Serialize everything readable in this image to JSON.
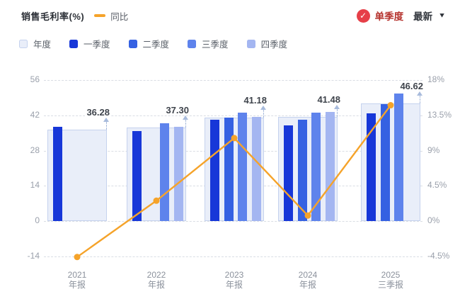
{
  "header": {
    "title": "销售毛利率(%)",
    "line_legend": "同比",
    "toggle_label": "单季度",
    "latest_label": "最新"
  },
  "legend": {
    "items": [
      {
        "key": "annual",
        "label": "年度"
      },
      {
        "key": "q1",
        "label": "一季度"
      },
      {
        "key": "q2",
        "label": "二季度"
      },
      {
        "key": "q3",
        "label": "三季度"
      },
      {
        "key": "q4",
        "label": "四季度"
      }
    ]
  },
  "colors": {
    "q1": "#1737d8",
    "q2": "#3561e2",
    "q3": "#5e83ec",
    "q4": "#a4b6f1",
    "annual_fill": "#e9eef9",
    "annual_border": "#c5d2ee",
    "line": "#f5a32a",
    "badge_red": "#e63f48",
    "toggle_text": "#b5322d",
    "pointer": "#a8bbdc"
  },
  "chart_data": {
    "type": "bar",
    "subtype": "grouped bars with annual background bar + YoY line on secondary axis",
    "title": "销售毛利率(%)",
    "categories": [
      "2021 年报",
      "2022 年报",
      "2023 年报",
      "2024 年报",
      "2025 三季报"
    ],
    "category_lines": [
      [
        "2021",
        "年报"
      ],
      [
        "2022",
        "年报"
      ],
      [
        "2023",
        "年报"
      ],
      [
        "2024",
        "年报"
      ],
      [
        "2025",
        "三季报"
      ]
    ],
    "annual_series": {
      "name": "年度",
      "values": [
        36.28,
        37.3,
        41.18,
        41.48,
        46.62
      ]
    },
    "annual_labels": [
      "36.28",
      "37.30",
      "41.18",
      "41.48",
      "46.62"
    ],
    "series": [
      {
        "name": "一季度",
        "values": [
          37.4,
          35.7,
          40.2,
          38.0,
          42.7
        ]
      },
      {
        "name": "二季度",
        "values": [
          null,
          null,
          41.1,
          40.4,
          46.5
        ]
      },
      {
        "name": "三季度",
        "values": [
          null,
          38.9,
          43.0,
          43.0,
          50.8
        ]
      },
      {
        "name": "四季度",
        "values": [
          null,
          37.5,
          41.4,
          43.4,
          null
        ]
      }
    ],
    "line_series": {
      "name": "同比",
      "axis": "right",
      "unit": "%",
      "values": [
        -4.6,
        2.6,
        10.6,
        0.7,
        14.8
      ]
    },
    "left_axis": {
      "label": "",
      "min": -14,
      "max": 56,
      "step": 14,
      "ticks": [
        56,
        42,
        28,
        14,
        0,
        -14
      ]
    },
    "right_axis": {
      "label": "",
      "min": -4.5,
      "max": 18,
      "step": 4.5,
      "ticks": [
        "18%",
        "13.5%",
        "9%",
        "4.5%",
        "0%",
        "-4.5%"
      ]
    },
    "grid": "dashed horizontal gridlines",
    "legend_position": "top-left, two rows"
  }
}
